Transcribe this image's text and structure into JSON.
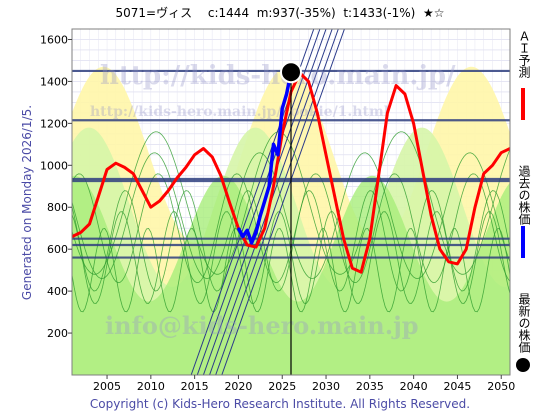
{
  "title": "5071=ヴィス　 c:1444  m:937(-35%)  t:1433(-1%)  ★☆",
  "side_label": "Generated on Monday 2026/1/5.",
  "copyright": "Copyright (c) Kids-Hero Research Institute. All Rights Reserved.",
  "legend": {
    "forecast_label": "ＡＩ予測",
    "forecast_color": "#ff0000",
    "past_label": "過去の株価",
    "past_color": "#0000ff",
    "latest_label": "最新の株価",
    "latest_color": "#000000"
  },
  "watermarks": [
    "http://kids-hero.main.jp/",
    "http://kids-hero.main.jp/cookie/1.html",
    "info@kids-hero.main.jp"
  ],
  "chart_data": {
    "type": "line",
    "xlim": [
      2001,
      2051
    ],
    "ylim": [
      0,
      1650
    ],
    "x_ticks": [
      2005,
      2010,
      2015,
      2020,
      2025,
      2030,
      2035,
      2040,
      2045,
      2050
    ],
    "y_ticks": [
      200,
      400,
      600,
      800,
      1000,
      1200,
      1400,
      1600
    ],
    "horizontal_lines": [
      1450,
      1215,
      935,
      925,
      650,
      620,
      560
    ],
    "latest_point": {
      "x": 2026.0,
      "y": 1444
    },
    "vertical_marker_x": 2026.0,
    "series": [
      {
        "role": "forecast",
        "color": "#ff0000",
        "x": [
          2001,
          2002,
          2003,
          2004,
          2005,
          2006,
          2007,
          2008,
          2009,
          2010,
          2011,
          2012,
          2013,
          2014,
          2015,
          2016,
          2017,
          2018,
          2019,
          2020,
          2021,
          2022,
          2023,
          2024,
          2025,
          2026,
          2027,
          2028,
          2029,
          2030,
          2031,
          2032,
          2033,
          2034,
          2035,
          2036,
          2037,
          2038,
          2039,
          2040,
          2041,
          2042,
          2043,
          2044,
          2045,
          2046,
          2047,
          2048,
          2049,
          2050,
          2051
        ],
        "values": [
          660,
          680,
          720,
          850,
          980,
          1010,
          990,
          960,
          880,
          800,
          830,
          880,
          940,
          990,
          1050,
          1080,
          1040,
          950,
          820,
          700,
          620,
          610,
          700,
          900,
          1150,
          1350,
          1440,
          1400,
          1250,
          1050,
          850,
          650,
          510,
          490,
          650,
          950,
          1250,
          1380,
          1340,
          1200,
          980,
          760,
          600,
          540,
          530,
          600,
          800,
          960,
          1000,
          1060,
          1080
        ]
      },
      {
        "role": "past",
        "color": "#0000ff",
        "x": [
          2020.0,
          2020.5,
          2021.0,
          2021.5,
          2022.0,
          2022.5,
          2023.0,
          2023.5,
          2024.0,
          2024.5,
          2025.0,
          2025.5,
          2026.0
        ],
        "values": [
          700,
          660,
          690,
          630,
          680,
          760,
          830,
          900,
          1100,
          1050,
          1270,
          1340,
          1444
        ]
      }
    ]
  }
}
